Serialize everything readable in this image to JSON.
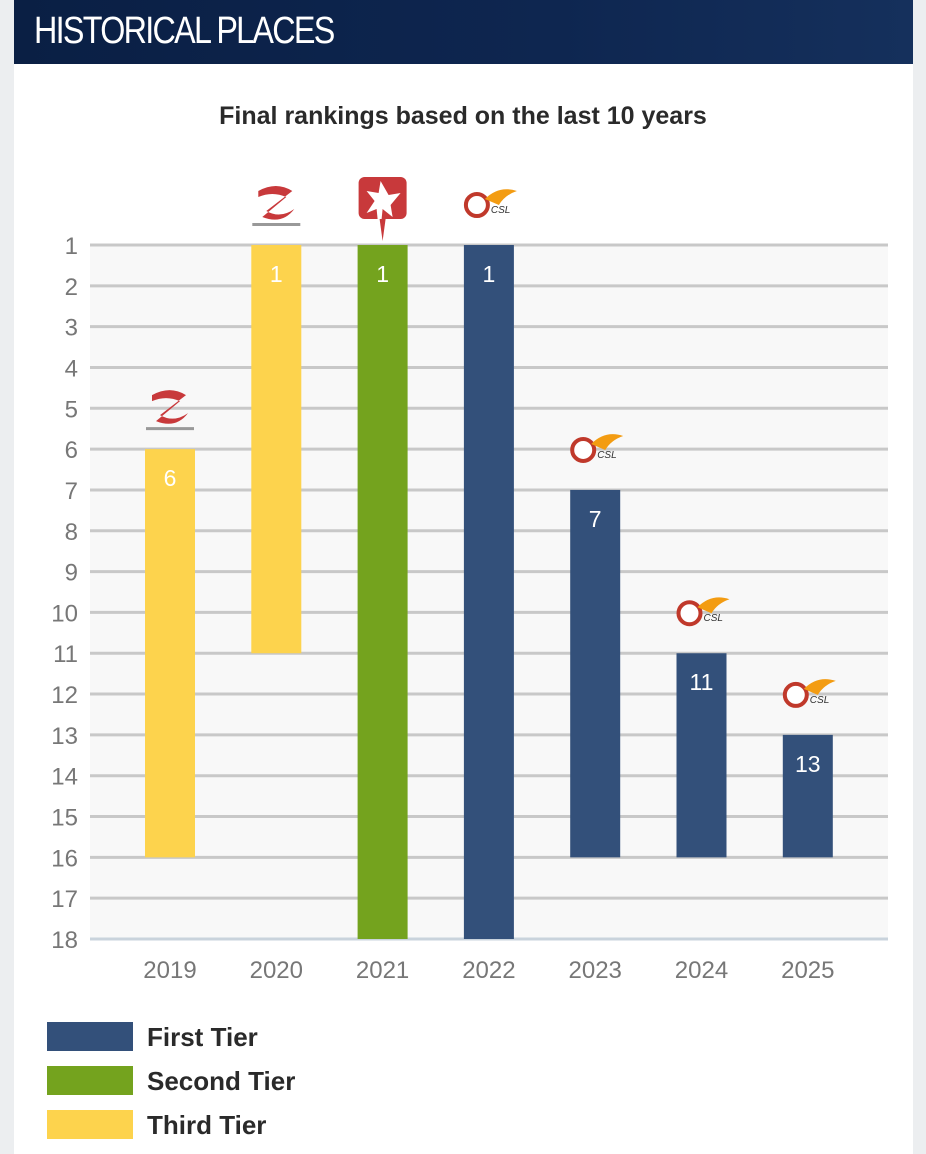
{
  "header": {
    "title": "HISTORICAL PLACES"
  },
  "chart_data": {
    "type": "bar",
    "title": "Final rankings based on the last 10 years",
    "categories": [
      "2019",
      "2020",
      "2021",
      "2022",
      "2023",
      "2024",
      "2025"
    ],
    "values": [
      6,
      1,
      1,
      1,
      7,
      11,
      13
    ],
    "league_size": [
      16,
      11,
      18,
      18,
      16,
      16,
      16
    ],
    "tiers": [
      "Third Tier",
      "Third Tier",
      "Second Tier",
      "First Tier",
      "First Tier",
      "First Tier",
      "First Tier"
    ],
    "logos": [
      "china-league-two-logo",
      "china-league-two-logo",
      "china-league-one-logo",
      "csl-logo",
      "csl-logo",
      "csl-logo",
      "csl-logo"
    ],
    "y_ticks": [
      1,
      2,
      3,
      4,
      5,
      6,
      7,
      8,
      9,
      10,
      11,
      12,
      13,
      14,
      15,
      16,
      17,
      18
    ],
    "ylim": [
      1,
      18
    ],
    "y_inverted": true,
    "grid": true,
    "legend_position": "bottom-left",
    "legend": [
      {
        "label": "First Tier",
        "color": "#33507a"
      },
      {
        "label": "Second Tier",
        "color": "#74a31e"
      },
      {
        "label": "Third Tier",
        "color": "#fdd34d"
      }
    ]
  }
}
